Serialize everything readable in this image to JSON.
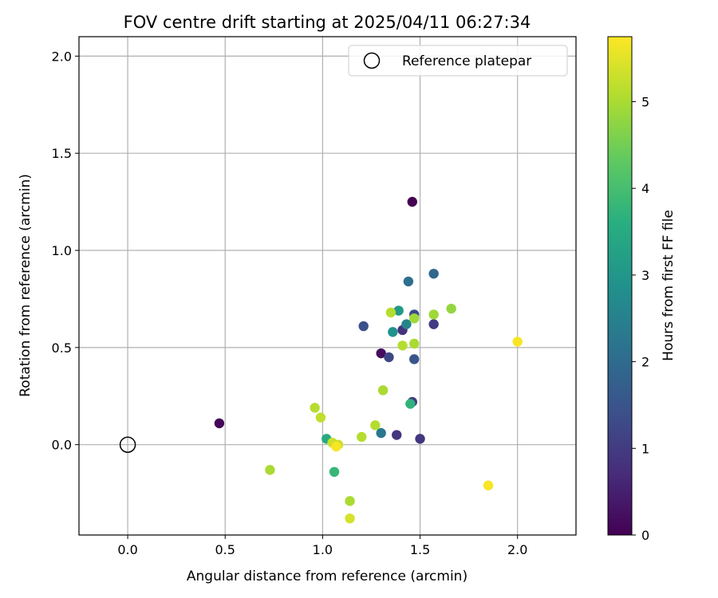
{
  "chart_data": {
    "type": "scatter",
    "title": "FOV centre drift starting at 2025/04/11 06:27:34",
    "xlabel": "Angular distance from reference (arcmin)",
    "ylabel": "Rotation from reference (arcmin)",
    "xlim": [
      -0.25,
      2.3
    ],
    "ylim": [
      -0.465,
      2.1
    ],
    "xticks": [
      0.0,
      0.5,
      1.0,
      1.5,
      2.0
    ],
    "yticks": [
      0.0,
      0.5,
      1.0,
      1.5,
      2.0
    ],
    "tick_labels_x": [
      "0.0",
      "0.5",
      "1.0",
      "1.5",
      "2.0"
    ],
    "tick_labels_y": [
      "0.0",
      "0.5",
      "1.0",
      "1.5",
      "2.0"
    ],
    "grid": true,
    "legend": {
      "position": "top-right",
      "entries": [
        "Reference platepar"
      ]
    },
    "reference_point": {
      "name": "Reference platepar",
      "x": 0.0,
      "y": 0.0
    },
    "colorbar": {
      "label": "Hours from first FF file",
      "colormap": "viridis",
      "range": [
        0,
        5.75
      ],
      "ticks": [
        0,
        1,
        2,
        3,
        4,
        5
      ],
      "tick_labels": [
        "0",
        "1",
        "2",
        "3",
        "4",
        "5"
      ]
    },
    "points": [
      {
        "x": 1.46,
        "y": 1.25,
        "hours": 0.0
      },
      {
        "x": 0.47,
        "y": 0.11,
        "hours": 0.1
      },
      {
        "x": 1.3,
        "y": 0.47,
        "hours": 0.2
      },
      {
        "x": 1.41,
        "y": 0.59,
        "hours": 0.8
      },
      {
        "x": 1.5,
        "y": 0.03,
        "hours": 0.9
      },
      {
        "x": 1.38,
        "y": 0.05,
        "hours": 0.9
      },
      {
        "x": 1.46,
        "y": 0.22,
        "hours": 1.0
      },
      {
        "x": 1.57,
        "y": 0.62,
        "hours": 1.0
      },
      {
        "x": 1.34,
        "y": 0.45,
        "hours": 1.2
      },
      {
        "x": 1.47,
        "y": 0.67,
        "hours": 1.3
      },
      {
        "x": 1.21,
        "y": 0.61,
        "hours": 1.4
      },
      {
        "x": 1.47,
        "y": 0.44,
        "hours": 1.5
      },
      {
        "x": 1.57,
        "y": 0.88,
        "hours": 1.9
      },
      {
        "x": 1.44,
        "y": 0.84,
        "hours": 2.1
      },
      {
        "x": 1.3,
        "y": 0.06,
        "hours": 2.3
      },
      {
        "x": 1.43,
        "y": 0.62,
        "hours": 2.6
      },
      {
        "x": 1.36,
        "y": 0.58,
        "hours": 2.9
      },
      {
        "x": 1.39,
        "y": 0.69,
        "hours": 3.1
      },
      {
        "x": 1.02,
        "y": 0.03,
        "hours": 3.5
      },
      {
        "x": 1.45,
        "y": 0.21,
        "hours": 3.7
      },
      {
        "x": 1.06,
        "y": -0.14,
        "hours": 3.8
      },
      {
        "x": 1.66,
        "y": 0.7,
        "hours": 4.8
      },
      {
        "x": 1.57,
        "y": 0.67,
        "hours": 4.9
      },
      {
        "x": 1.47,
        "y": 0.65,
        "hours": 4.9
      },
      {
        "x": 1.47,
        "y": 0.52,
        "hours": 5.0
      },
      {
        "x": 1.41,
        "y": 0.51,
        "hours": 5.1
      },
      {
        "x": 1.35,
        "y": 0.68,
        "hours": 5.1
      },
      {
        "x": 1.31,
        "y": 0.28,
        "hours": 5.0
      },
      {
        "x": 1.27,
        "y": 0.1,
        "hours": 5.1
      },
      {
        "x": 1.2,
        "y": 0.04,
        "hours": 5.1
      },
      {
        "x": 0.96,
        "y": 0.19,
        "hours": 5.1
      },
      {
        "x": 0.99,
        "y": 0.14,
        "hours": 5.2
      },
      {
        "x": 0.73,
        "y": -0.13,
        "hours": 5.0
      },
      {
        "x": 1.14,
        "y": -0.29,
        "hours": 5.0
      },
      {
        "x": 1.05,
        "y": 0.01,
        "hours": 5.3
      },
      {
        "x": 1.08,
        "y": 0.0,
        "hours": 5.3
      },
      {
        "x": 1.14,
        "y": -0.38,
        "hours": 5.4
      },
      {
        "x": 1.07,
        "y": -0.01,
        "hours": 5.7
      },
      {
        "x": 1.85,
        "y": -0.21,
        "hours": 5.7
      },
      {
        "x": 2.0,
        "y": 0.53,
        "hours": 5.7
      }
    ]
  }
}
